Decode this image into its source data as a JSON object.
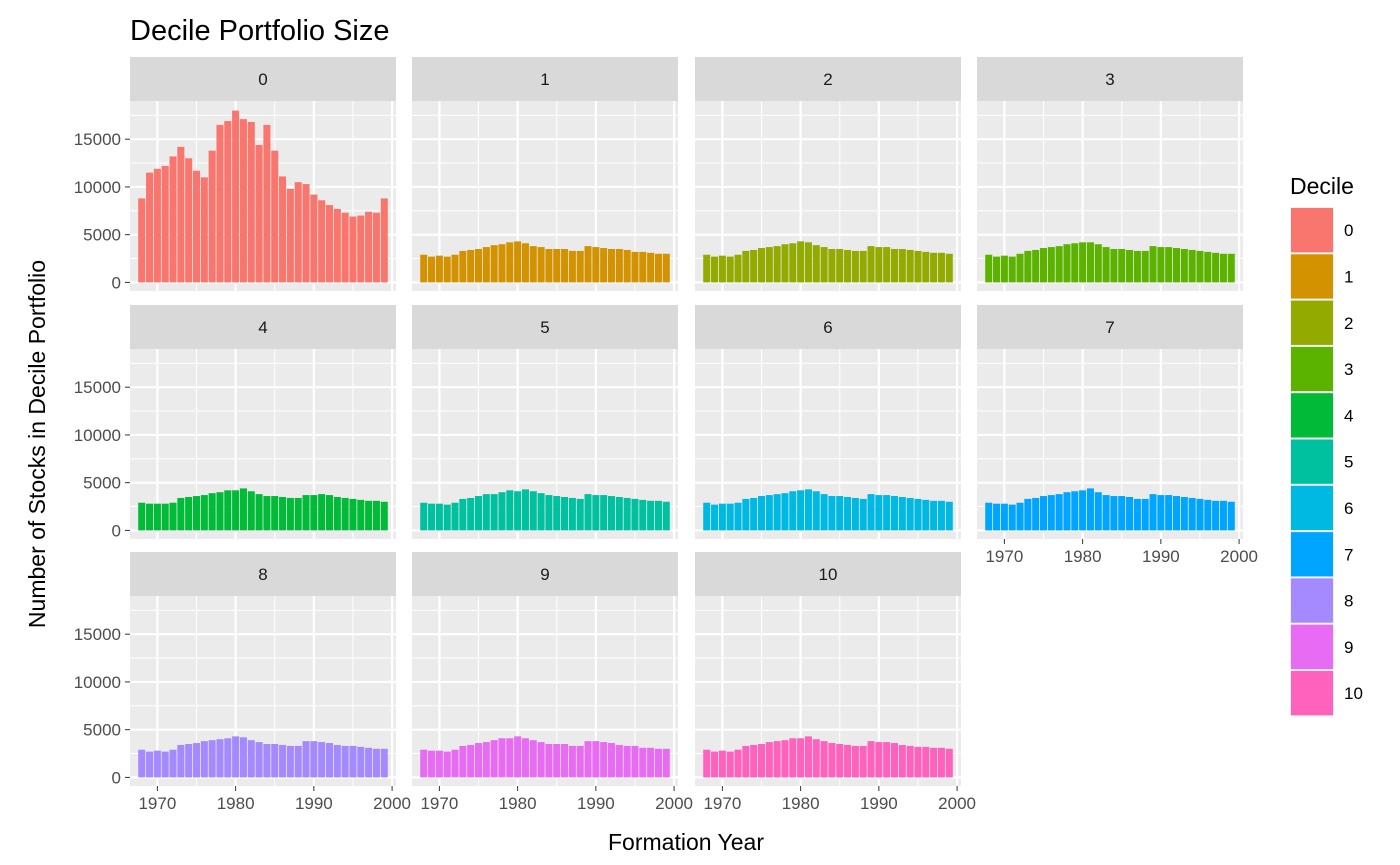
{
  "chart_data": {
    "type": "bar",
    "title": "Decile Portfolio Size",
    "xlabel": "Formation Year",
    "ylabel": "Number of Stocks in Decile Portfolio",
    "legend_title": "Decile",
    "legend_position": "right",
    "grid": true,
    "xlim": [
      1966.5,
      2000.5
    ],
    "ylim": [
      -900,
      19000
    ],
    "xticks": [
      "1970",
      "1980",
      "1990",
      "2000"
    ],
    "yticks": [
      "0",
      "5000",
      "10000",
      "15000"
    ],
    "x": [
      1968,
      1969,
      1970,
      1971,
      1972,
      1973,
      1974,
      1975,
      1976,
      1977,
      1978,
      1979,
      1980,
      1981,
      1982,
      1983,
      1984,
      1985,
      1986,
      1987,
      1988,
      1989,
      1990,
      1991,
      1992,
      1993,
      1994,
      1995,
      1996,
      1997,
      1998,
      1999
    ],
    "series": [
      {
        "name": "0",
        "color": "#F8766D",
        "values": [
          8800,
          11500,
          11900,
          12200,
          13200,
          14200,
          13000,
          11700,
          11000,
          13800,
          16500,
          16900,
          18000,
          17100,
          16800,
          14400,
          16500,
          13800,
          11100,
          9800,
          10500,
          10300,
          9200,
          8600,
          8100,
          7700,
          7300,
          6900,
          7000,
          7400,
          7300,
          8800
        ]
      },
      {
        "name": "1",
        "color": "#D39200",
        "values": [
          2900,
          2700,
          2800,
          2700,
          2900,
          3300,
          3400,
          3500,
          3700,
          3900,
          4000,
          4200,
          4300,
          4100,
          3800,
          3700,
          3500,
          3500,
          3500,
          3300,
          3300,
          3800,
          3700,
          3600,
          3500,
          3500,
          3400,
          3200,
          3200,
          3100,
          3000,
          3000
        ]
      },
      {
        "name": "2",
        "color": "#93AA00",
        "values": [
          2900,
          2700,
          2800,
          2700,
          2900,
          3300,
          3400,
          3600,
          3700,
          3800,
          4000,
          4100,
          4300,
          4200,
          3900,
          3700,
          3500,
          3500,
          3400,
          3300,
          3300,
          3800,
          3700,
          3700,
          3500,
          3500,
          3400,
          3300,
          3200,
          3100,
          3100,
          3000
        ]
      },
      {
        "name": "3",
        "color": "#5BB300",
        "values": [
          2900,
          2700,
          2800,
          2700,
          3000,
          3300,
          3400,
          3600,
          3700,
          3800,
          4000,
          4100,
          4200,
          4200,
          4000,
          3700,
          3500,
          3500,
          3400,
          3300,
          3300,
          3800,
          3700,
          3700,
          3600,
          3500,
          3400,
          3300,
          3200,
          3100,
          3000,
          3000
        ]
      },
      {
        "name": "4",
        "color": "#00BA38",
        "values": [
          2900,
          2800,
          2800,
          2800,
          2900,
          3400,
          3500,
          3600,
          3700,
          3900,
          4000,
          4200,
          4200,
          4400,
          4100,
          3800,
          3600,
          3600,
          3500,
          3400,
          3400,
          3700,
          3700,
          3800,
          3700,
          3500,
          3400,
          3300,
          3200,
          3100,
          3100,
          3000
        ]
      },
      {
        "name": "5",
        "color": "#00C19F",
        "values": [
          2900,
          2800,
          2800,
          2700,
          2900,
          3300,
          3400,
          3600,
          3800,
          3800,
          4000,
          4200,
          4100,
          4300,
          4100,
          3900,
          3700,
          3600,
          3500,
          3400,
          3300,
          3800,
          3700,
          3700,
          3600,
          3500,
          3400,
          3300,
          3200,
          3100,
          3100,
          3000
        ]
      },
      {
        "name": "6",
        "color": "#00B9E3",
        "values": [
          2900,
          2700,
          2800,
          2800,
          2900,
          3300,
          3400,
          3600,
          3700,
          3800,
          3900,
          4100,
          4200,
          4300,
          4100,
          3800,
          3600,
          3600,
          3500,
          3400,
          3300,
          3800,
          3700,
          3700,
          3600,
          3500,
          3400,
          3300,
          3200,
          3100,
          3100,
          3000
        ]
      },
      {
        "name": "7",
        "color": "#00A5FF",
        "values": [
          2900,
          2800,
          2800,
          2700,
          2900,
          3300,
          3400,
          3600,
          3700,
          3800,
          4000,
          4100,
          4200,
          4400,
          4000,
          3700,
          3600,
          3600,
          3500,
          3300,
          3300,
          3800,
          3700,
          3700,
          3600,
          3500,
          3400,
          3300,
          3200,
          3100,
          3100,
          3000
        ]
      },
      {
        "name": "8",
        "color": "#A58AFF",
        "values": [
          2900,
          2700,
          2800,
          2700,
          2900,
          3400,
          3500,
          3600,
          3800,
          3900,
          4000,
          4100,
          4300,
          4200,
          3900,
          3700,
          3500,
          3500,
          3400,
          3300,
          3300,
          3800,
          3800,
          3700,
          3600,
          3400,
          3300,
          3300,
          3200,
          3100,
          3000,
          3000
        ]
      },
      {
        "name": "9",
        "color": "#E76BF3",
        "values": [
          2900,
          2800,
          2800,
          2700,
          2900,
          3300,
          3400,
          3600,
          3700,
          3900,
          4100,
          4100,
          4300,
          4100,
          3900,
          3700,
          3500,
          3500,
          3500,
          3300,
          3300,
          3800,
          3800,
          3700,
          3600,
          3400,
          3300,
          3300,
          3100,
          3100,
          3000,
          3000
        ]
      },
      {
        "name": "10",
        "color": "#FF62BC",
        "values": [
          2900,
          2700,
          2800,
          2700,
          2900,
          3300,
          3400,
          3500,
          3700,
          3800,
          3900,
          4100,
          4100,
          4300,
          4000,
          3800,
          3600,
          3500,
          3400,
          3300,
          3300,
          3800,
          3700,
          3700,
          3600,
          3400,
          3300,
          3200,
          3200,
          3100,
          3100,
          3000
        ]
      }
    ]
  }
}
